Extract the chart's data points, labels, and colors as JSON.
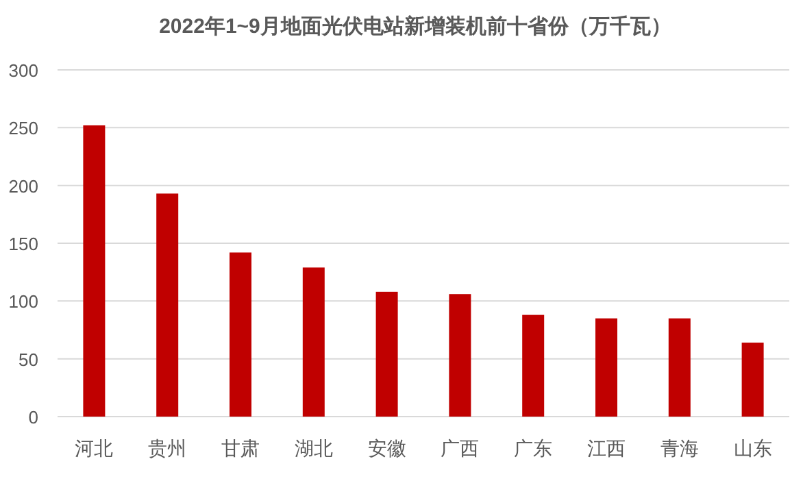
{
  "chart_data": {
    "type": "bar",
    "title": "2022年1~9月地面光伏电站新增装机前十省份（万千瓦）",
    "categories": [
      "河北",
      "贵州",
      "甘肃",
      "湖北",
      "安徽",
      "广西",
      "广东",
      "江西",
      "青海",
      "山东"
    ],
    "values": [
      252,
      193,
      142,
      129,
      108,
      106,
      88,
      85,
      85,
      64
    ],
    "color": "#c00000",
    "ylim": [
      0,
      300
    ],
    "yticks": [
      0,
      50,
      100,
      150,
      200,
      250,
      300
    ],
    "grid": "y"
  }
}
